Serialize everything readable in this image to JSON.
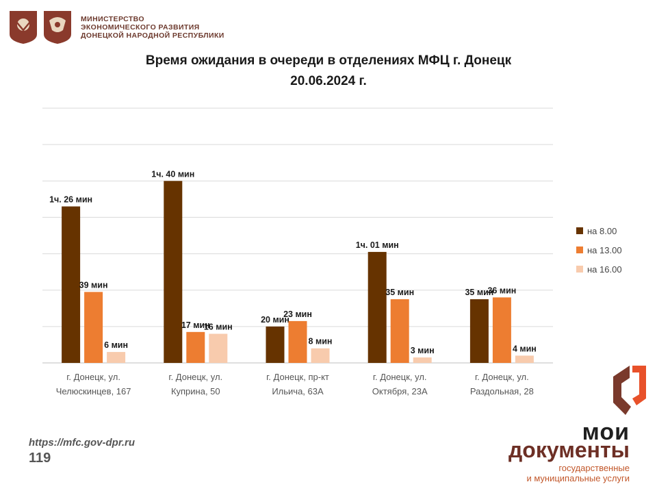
{
  "header": {
    "ministry_lines": [
      "МИНИСТЕРСТВО",
      "ЭКОНОМИЧЕСКОГО РАЗВИТИЯ",
      "ДОНЕЦКОЙ НАРОДНОЙ РЕСПУБЛИКИ"
    ],
    "emblem_1": "russian-coat-of-arms-icon",
    "emblem_2": "dpr-coat-of-arms-icon"
  },
  "chart_data": {
    "type": "bar",
    "title": "Время ожидания в очереди в отделениях МФЦ г. Донецк",
    "subtitle": "20.06.2024 г.",
    "categories": [
      "г. Донецк, ул. Челюскинцев, 167",
      "г. Донецк, ул. Куприна, 50",
      "г. Донецк, пр-кт Ильича, 63А",
      "г. Донецк, ул. Октября, 23А",
      "г. Донецк, ул. Раздольная, 28"
    ],
    "category_lines": [
      [
        "г. Донецк, ул.",
        "Челюскинцев, 167"
      ],
      [
        "г. Донецк, ул.",
        "Куприна, 50"
      ],
      [
        "г. Донецк, пр-кт",
        "Ильича, 63А"
      ],
      [
        "г. Донецк, ул.",
        "Октября, 23А"
      ],
      [
        "г. Донецк, ул.",
        "Раздольная, 28"
      ]
    ],
    "unit": "minutes",
    "ylim": [
      0,
      140
    ],
    "grid": true,
    "legend_position": "right",
    "series": [
      {
        "name": "на 8.00",
        "color": "#663300",
        "values": [
          86,
          100,
          20,
          61,
          35
        ],
        "labels": [
          "1ч. 26 мин",
          "1ч. 40 мин",
          "20 мин",
          "1ч. 01 мин",
          "35 мин"
        ]
      },
      {
        "name": "на 13.00",
        "color": "#ED7D31",
        "values": [
          39,
          17,
          23,
          35,
          36
        ],
        "labels": [
          "39 мин",
          "17 мин",
          "23 мин",
          "35 мин",
          "36 мин"
        ]
      },
      {
        "name": "на 16.00",
        "color": "#F8CBAD",
        "values": [
          6,
          16,
          8,
          3,
          4
        ],
        "labels": [
          "6 мин",
          "16 мин",
          "8 мин",
          "3 мин",
          "4 мин"
        ]
      }
    ]
  },
  "footer": {
    "url": "https://mfc.gov-dpr.ru",
    "page": "119"
  },
  "brand": {
    "line1": "мои",
    "line2": "документы",
    "line3a": "государственные",
    "line3b": "и муниципальные услуги"
  }
}
